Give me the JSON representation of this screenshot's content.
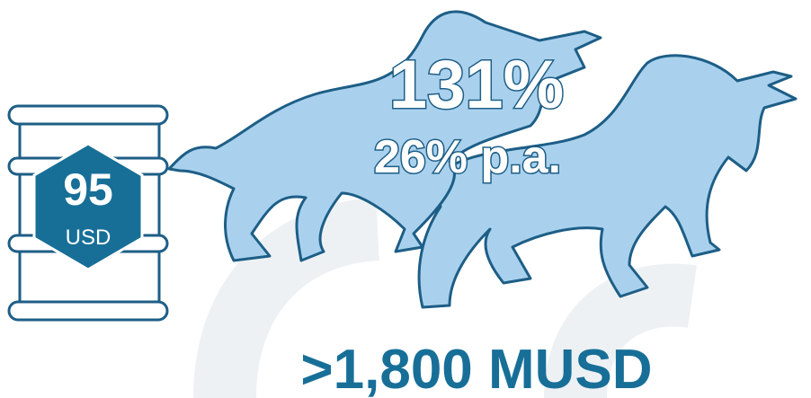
{
  "barrel": {
    "value": "95",
    "unit": "USD"
  },
  "returns": {
    "total": "131%",
    "annual": "26% p.a."
  },
  "footer": ">1,800 MUSD"
}
